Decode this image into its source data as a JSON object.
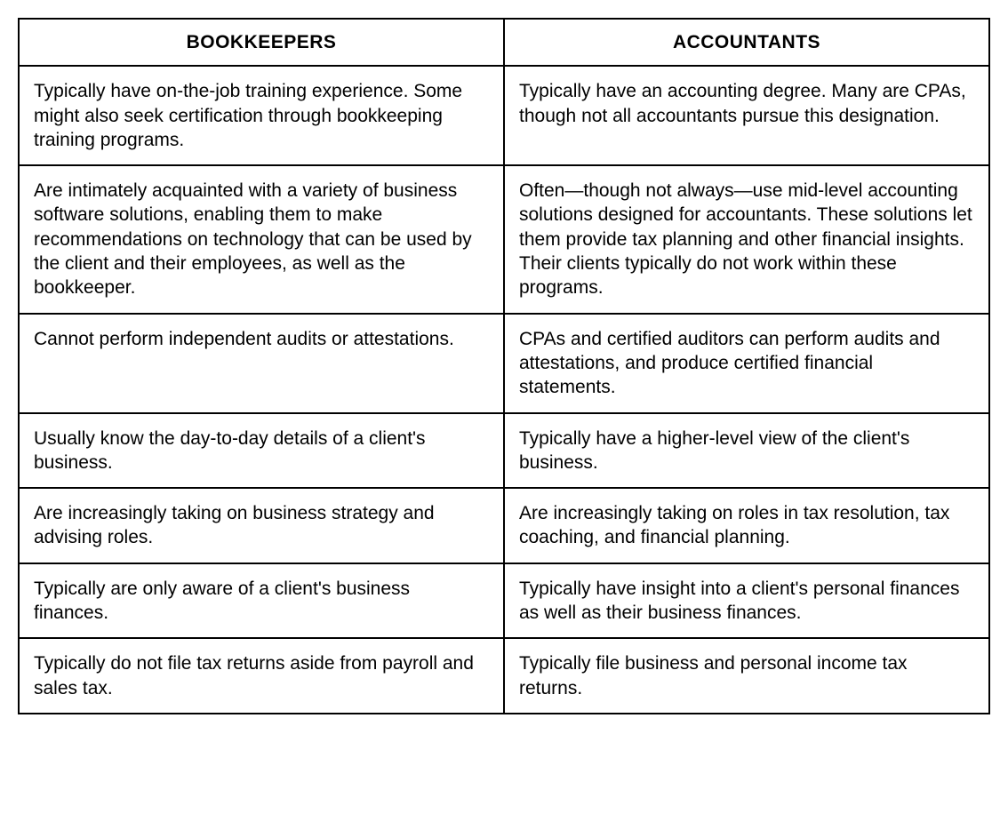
{
  "table": {
    "columns": [
      "BOOKKEEPERS",
      "ACCOUNTANTS"
    ],
    "column_widths": [
      "50%",
      "50%"
    ],
    "header_fontsize": 21,
    "cell_fontsize": 21,
    "border_color": "#000000",
    "border_width": 2,
    "background_color": "#ffffff",
    "text_color": "#000000",
    "rows": [
      [
        "Typically have on-the-job training experience. Some might also seek certification through bookkeeping training programs.",
        "Typically have an accounting degree. Many are CPAs, though not all accountants pursue this designation."
      ],
      [
        "Are intimately acquainted with a variety of business software solutions, enabling them to make recommendations on technology that can be used by the client and their employees, as well as the bookkeeper.",
        "Often—though not always—use mid-level accounting solutions designed for accountants. These solutions let them provide tax planning and other financial insights. Their clients typically do not work within these programs."
      ],
      [
        "Cannot perform independent audits or attestations.",
        "CPAs and certified auditors can perform audits and attestations, and produce certified financial statements."
      ],
      [
        "Usually know the day-to-day details of a client's business.",
        "Typically have a higher-level view of the client's business."
      ],
      [
        "Are increasingly taking on business strategy and advising roles.",
        "Are increasingly taking on roles in tax resolution, tax coaching, and financial planning."
      ],
      [
        "Typically are only aware of a client's business finances.",
        "Typically have insight into a client's personal finances as well as their business finances."
      ],
      [
        "Typically do not file tax returns aside from payroll and sales tax.",
        "Typically file business and personal income tax returns."
      ]
    ]
  }
}
